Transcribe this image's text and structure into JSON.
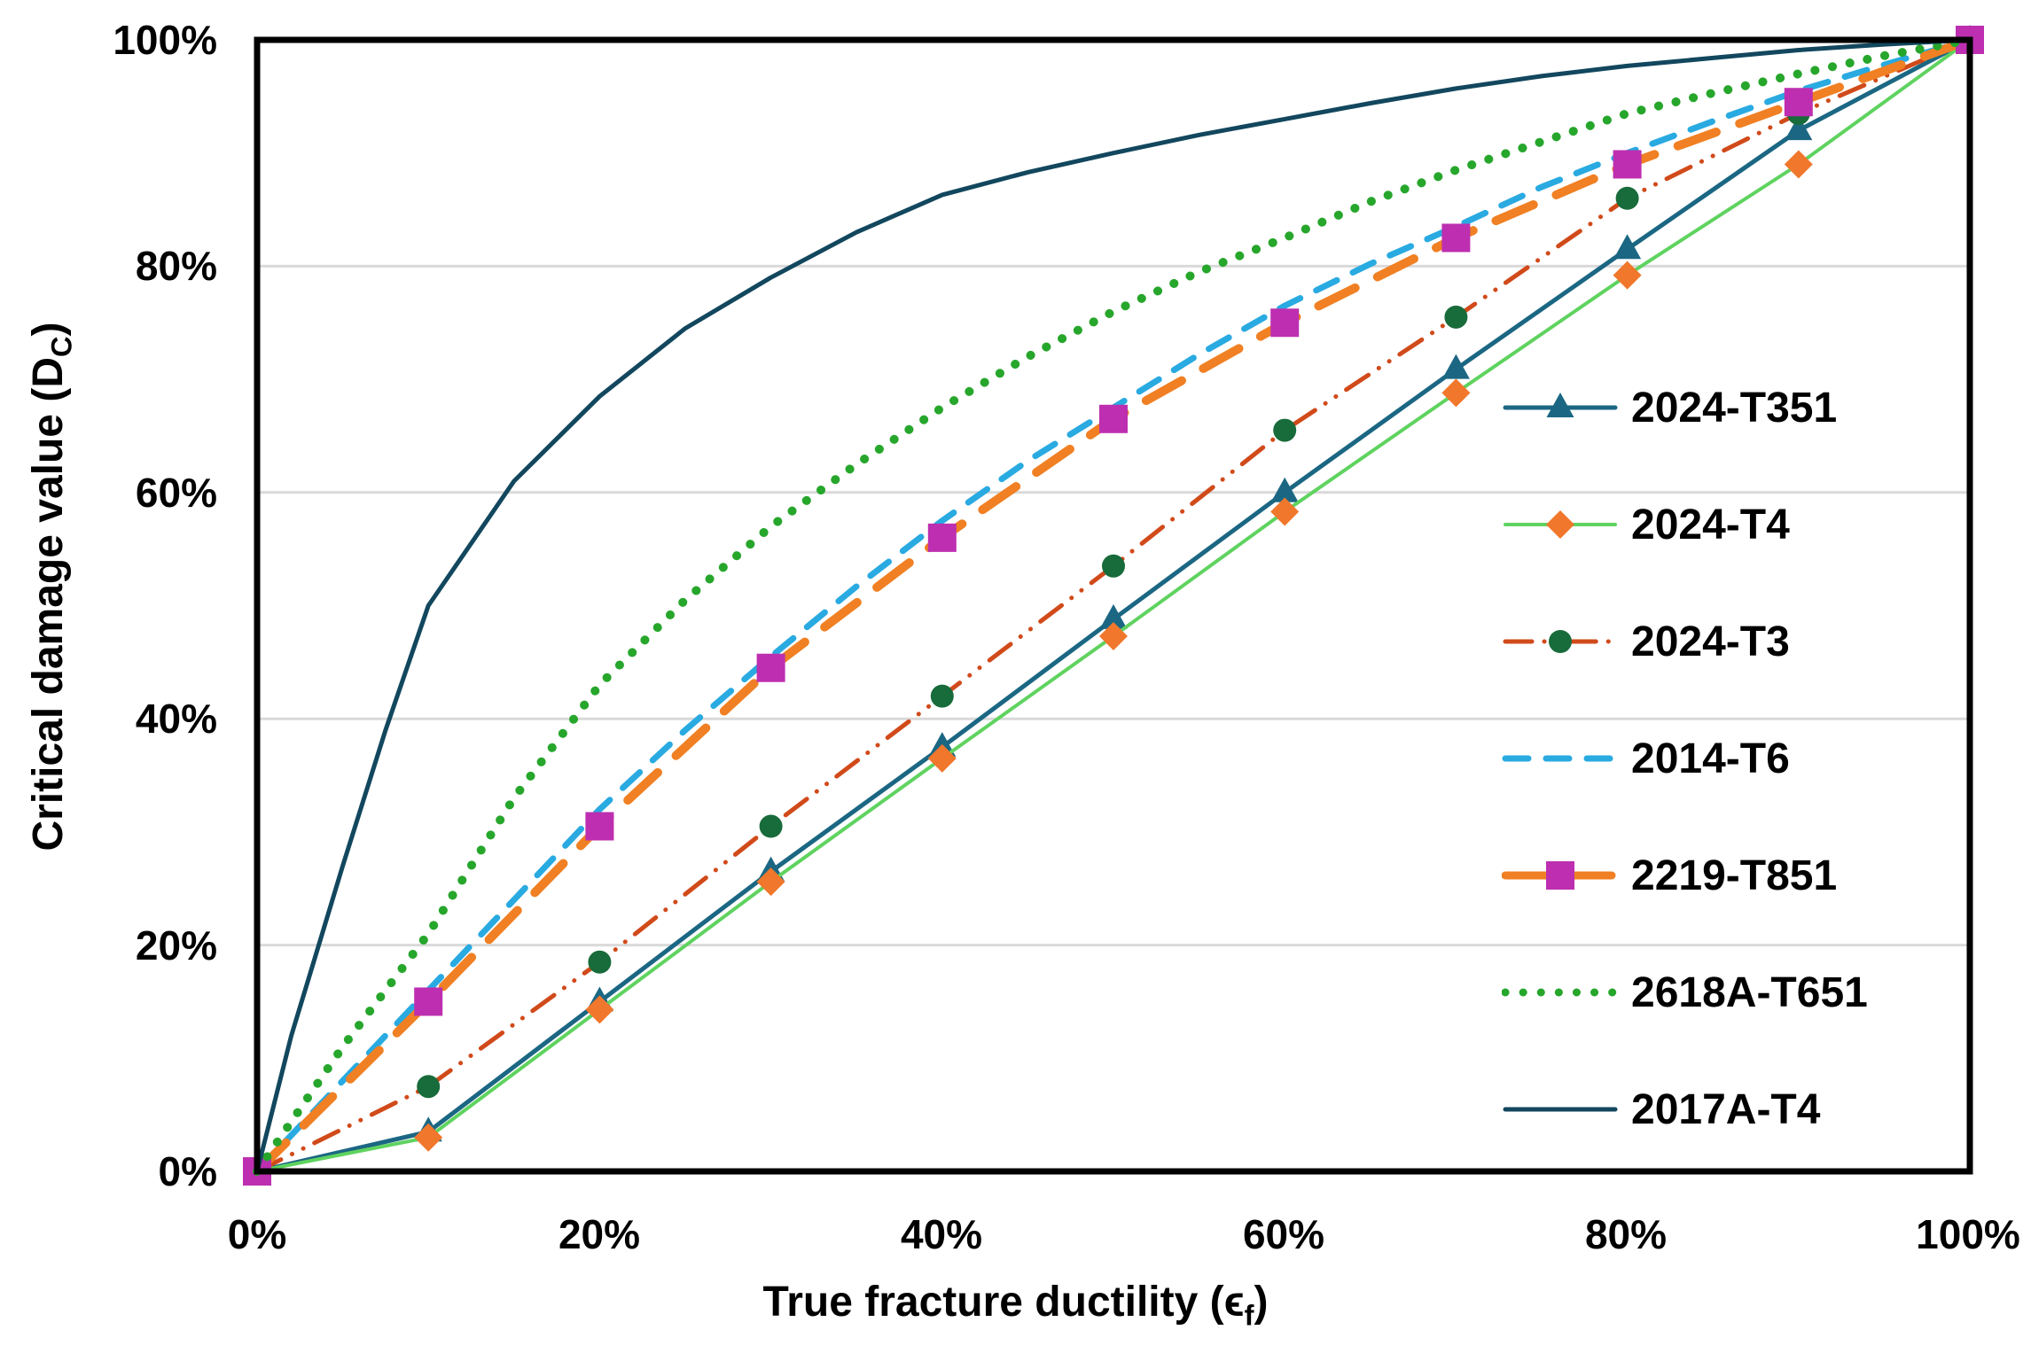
{
  "figure": {
    "background_color": "#ffffff",
    "plot_border_color": "#000000",
    "grid_color": "#d9d9d9",
    "text_color": "#000000"
  },
  "axis_labels": {
    "y_main": "Critical damage value (D",
    "y_sub": "C",
    "y_close": ")",
    "x_main": "True fracture ductility (ϵ",
    "x_sub": "f",
    "x_close": ")"
  },
  "chart_data": {
    "type": "line",
    "title": "",
    "xlabel": "True fracture ductility (ϵf)",
    "ylabel": "Critical damage value (DC)",
    "xlim": [
      0,
      100
    ],
    "ylim": [
      0,
      100
    ],
    "grid": "horizontal",
    "y_grid_values": [
      20,
      40,
      60,
      80
    ],
    "x_tick_values": [
      0,
      20,
      40,
      60,
      80,
      100
    ],
    "x_ticks": [
      "0%",
      "20%",
      "40%",
      "60%",
      "80%",
      "100%"
    ],
    "y_ticks": [
      "0%",
      "20%",
      "40%",
      "60%",
      "80%",
      "100%"
    ],
    "legend_position": "inside-right",
    "series": [
      {
        "name": "2024-T351",
        "line_color": "#1b6783",
        "line_width": 5,
        "dash": "solid",
        "marker": "triangle",
        "marker_color": "#1b6783",
        "x": [
          0,
          10,
          20,
          30,
          40,
          50,
          60,
          70,
          80,
          90,
          100
        ],
        "values": [
          0,
          3.5,
          15,
          26.5,
          37.5,
          48.8,
          60,
          70.9,
          81.5,
          92,
          100
        ]
      },
      {
        "name": "2024-T4",
        "line_color": "#5fd35f",
        "line_width": 4,
        "dash": "solid",
        "marker": "diamond",
        "marker_color": "#f0772c",
        "x": [
          0,
          10,
          20,
          30,
          40,
          50,
          60,
          70,
          80,
          90,
          100
        ],
        "values": [
          0,
          3,
          14.3,
          25.6,
          36.5,
          47.3,
          58.3,
          68.8,
          79.2,
          89,
          100
        ]
      },
      {
        "name": "2024-T3",
        "line_color": "#d14a1a",
        "line_width": 5,
        "dash": "dashdotdot",
        "marker": "circle",
        "marker_color": "#186b3a",
        "x": [
          0,
          10,
          20,
          30,
          40,
          50,
          60,
          70,
          80,
          90,
          100
        ],
        "values": [
          0,
          7.5,
          18.5,
          30.5,
          42,
          53.5,
          65.5,
          75.5,
          86,
          93.5,
          100
        ]
      },
      {
        "name": "2014-T6",
        "line_color": "#29aae1",
        "line_width": 7,
        "dash": "dash",
        "marker": null,
        "marker_color": null,
        "x": [
          0,
          5,
          10,
          15,
          20,
          25,
          30,
          35,
          40,
          45,
          50,
          55,
          60,
          65,
          70,
          75,
          80,
          85,
          90,
          95,
          100
        ],
        "values": [
          0,
          8,
          16,
          24,
          32,
          39,
          45.5,
          51.7,
          57.5,
          62.8,
          67.5,
          72.2,
          76.5,
          80.2,
          83.5,
          87,
          90,
          92.8,
          95.5,
          97.8,
          100
        ]
      },
      {
        "name": "2219-T851",
        "line_color": "#f08023",
        "line_width": 10,
        "dash": "longdash",
        "marker": "square",
        "marker_color": "#bd2fb0",
        "x": [
          0,
          10,
          20,
          30,
          40,
          50,
          60,
          70,
          80,
          90,
          100
        ],
        "values": [
          0,
          15,
          30.5,
          44.5,
          56,
          66.5,
          75,
          82.5,
          89,
          94.5,
          100
        ]
      },
      {
        "name": "2618A-T651",
        "line_color": "#27a62c",
        "line_width": 10,
        "dash": "dot",
        "marker": null,
        "marker_color": null,
        "x": [
          0,
          5,
          10,
          15,
          20,
          25,
          30,
          35,
          40,
          45,
          50,
          55,
          60,
          65,
          70,
          75,
          80,
          85,
          90,
          95,
          100
        ],
        "values": [
          0,
          11,
          21,
          33,
          43,
          50.5,
          57,
          62.5,
          67.5,
          72,
          76,
          79.5,
          82.5,
          85.7,
          88.5,
          91,
          93.5,
          95.3,
          97,
          98.6,
          100
        ]
      },
      {
        "name": "2017A-T4",
        "line_color": "#12475e",
        "line_width": 5,
        "dash": "solid",
        "marker": null,
        "marker_color": null,
        "x": [
          0,
          1,
          2,
          3,
          5,
          7.5,
          10,
          15,
          20,
          25,
          30,
          35,
          40,
          45,
          50,
          55,
          60,
          65,
          70,
          75,
          80,
          85,
          90,
          95,
          100
        ],
        "values": [
          0,
          6,
          12,
          17,
          27,
          39,
          50,
          61,
          68.5,
          74.5,
          79,
          83,
          86.3,
          88.3,
          90,
          91.6,
          93,
          94.4,
          95.7,
          96.8,
          97.7,
          98.4,
          99.1,
          99.6,
          100
        ]
      }
    ]
  }
}
